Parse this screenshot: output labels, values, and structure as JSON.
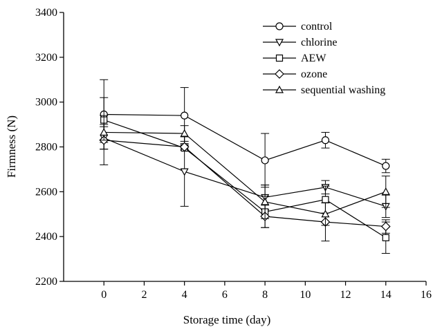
{
  "chart_data": {
    "type": "line",
    "title": "",
    "xlabel": "Storage time (day)",
    "ylabel": "Firmness (N)",
    "xlim": [
      -2,
      16
    ],
    "ylim": [
      2200,
      3400
    ],
    "xticks": [
      0,
      2,
      4,
      6,
      8,
      10,
      12,
      14,
      16
    ],
    "yticks": [
      2200,
      2400,
      2600,
      2800,
      3000,
      3200,
      3400
    ],
    "grid": false,
    "legend_position": "top-right",
    "x": [
      0,
      4,
      8,
      11,
      14
    ],
    "series": [
      {
        "name": "control",
        "marker": "circle",
        "values": [
          2945,
          2940,
          2740,
          2830,
          2715
        ],
        "errors": [
          155,
          125,
          120,
          35,
          30
        ]
      },
      {
        "name": "chlorine",
        "marker": "triangle-down",
        "values": [
          2840,
          2690,
          2575,
          2620,
          2535
        ],
        "errors": [
          50,
          155,
          55,
          30,
          50
        ]
      },
      {
        "name": "AEW",
        "marker": "square",
        "values": [
          2920,
          2795,
          2510,
          2565,
          2395
        ],
        "errors": [
          100,
          10,
          70,
          60,
          70
        ]
      },
      {
        "name": "ozone",
        "marker": "diamond",
        "values": [
          2830,
          2800,
          2490,
          2465,
          2445
        ],
        "errors": [
          110,
          10,
          50,
          85,
          30
        ]
      },
      {
        "name": "sequential washing",
        "marker": "triangle-up",
        "values": [
          2865,
          2860,
          2555,
          2500,
          2600
        ],
        "errors": [
          35,
          35,
          75,
          50,
          70
        ]
      }
    ]
  }
}
